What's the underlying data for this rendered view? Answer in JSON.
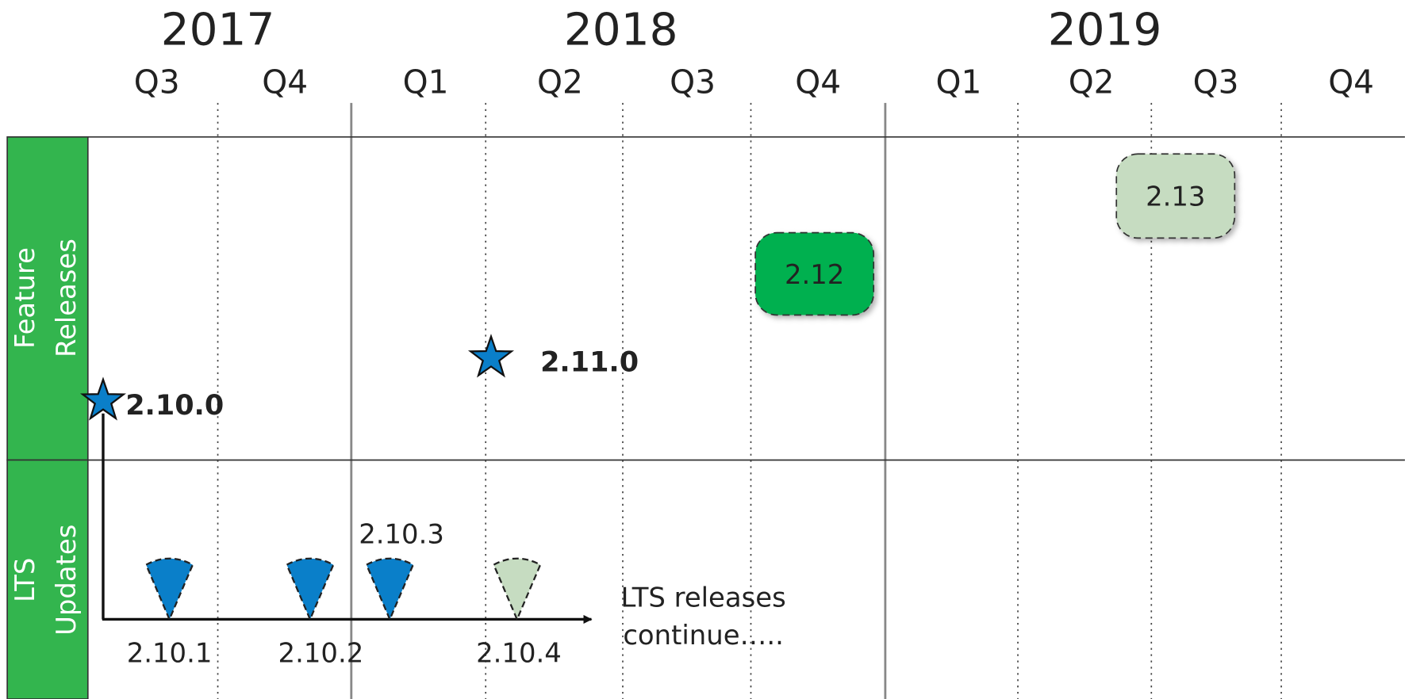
{
  "years": [
    "2017",
    "2018",
    "2019"
  ],
  "quarters": [
    "Q3",
    "Q4",
    "Q1",
    "Q2",
    "Q3",
    "Q4",
    "Q1",
    "Q2",
    "Q3",
    "Q4"
  ],
  "lanes": [
    {
      "label": [
        "Feature",
        "Releases"
      ]
    },
    {
      "label": [
        "LTS",
        "Updates"
      ]
    }
  ],
  "feature_releases": [
    "2.10.0",
    "2.11.0"
  ],
  "planned_releases": [
    "2.12",
    "2.13"
  ],
  "lts_updates": [
    "2.10.1",
    "2.10.2",
    "2.10.3",
    "2.10.4"
  ],
  "note": [
    "LTS releases",
    "continue….."
  ]
}
